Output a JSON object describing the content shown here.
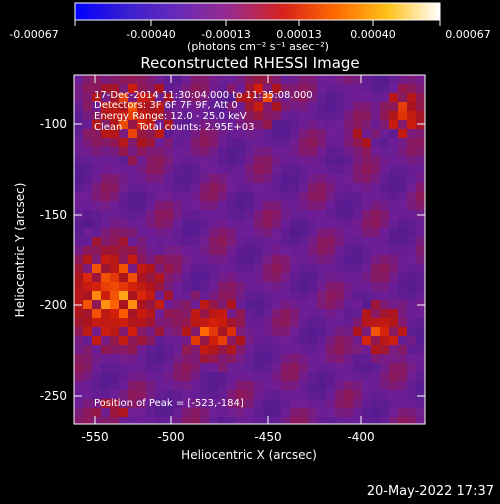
{
  "colorbar": {
    "tick_labels": [
      "-0.00067",
      "-0.00040",
      "-0.00013",
      "0.00013",
      "0.00040",
      "0.00067"
    ],
    "unit_label": "(photons cm⁻² s⁻¹ asec⁻²)",
    "stops": [
      "#0000ff",
      "#3a1fd0",
      "#6a2ab8",
      "#9a2a8a",
      "#d8221c",
      "#ff6a00",
      "#ffc21a",
      "#ffffff"
    ]
  },
  "plot": {
    "title": "Reconstructed RHESSI Image",
    "xlabel": "Heliocentric X (arcsec)",
    "ylabel": "Heliocentric Y (arcsec)",
    "x_ticks": [
      "-550",
      "-500",
      "-450",
      "-400"
    ],
    "y_ticks": [
      "-100",
      "-150",
      "-200",
      "-250"
    ],
    "info_lines": [
      "17-Dec-2014 11:30:04.000 to 11:35:08.000",
      "Detectors: 3F 6F 7F 9F, Att 0",
      "Energy Range: 12.0 - 25.0 keV",
      "Clean     Total counts: 2.95E+03"
    ],
    "peak_label": "Position of Peak = [-523,-184]"
  },
  "footer": {
    "timestamp": "20-May-2022 17:37"
  }
}
